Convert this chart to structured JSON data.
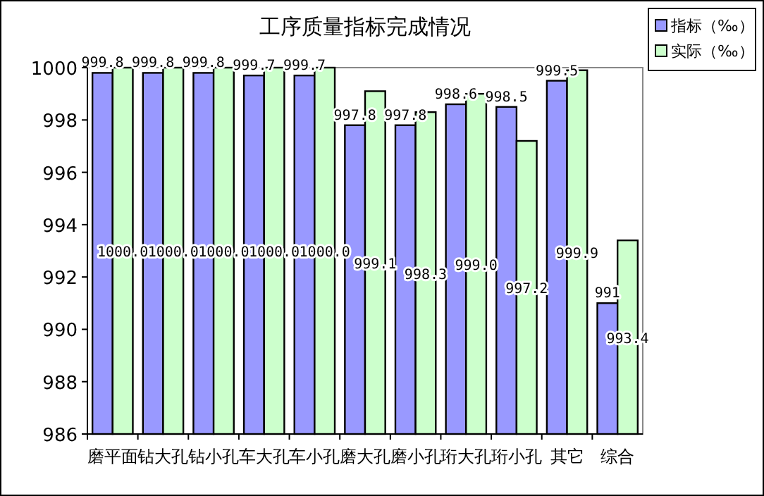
{
  "chart_data": {
    "type": "bar",
    "title": "工序质量指标完成情况",
    "categories": [
      "磨平面",
      "钻大孔",
      "钻小孔",
      "车大孔",
      "车小孔",
      "磨大孔",
      "磨小孔",
      "珩大孔",
      "珩小孔",
      "其它",
      "综合"
    ],
    "series": [
      {
        "name": "指标（‰）",
        "color": "#9999ff",
        "values": [
          999.8,
          999.8,
          999.8,
          999.7,
          999.7,
          997.8,
          997.8,
          998.6,
          998.5,
          999.5,
          991
        ],
        "value_labels": [
          "999.8",
          "999.8",
          "999.8",
          "999.7",
          "999.7",
          "997.8",
          "997.8",
          "998.6",
          "998.5",
          "999.5",
          "991"
        ]
      },
      {
        "name": "实际（‰）",
        "color": "#ccffcc",
        "values": [
          1000,
          1000,
          1000,
          1000,
          1000,
          999.1,
          998.3,
          999,
          997.2,
          999.9,
          993.4
        ],
        "value_labels": [
          "1000.0",
          "1000.0",
          "1000.0",
          "1000.0",
          "1000.0",
          "999.1",
          "998.3",
          "999.0",
          "997.2",
          "999.9",
          "993.4"
        ]
      }
    ],
    "ylim": [
      986,
      1000
    ],
    "yticks": [
      986,
      988,
      990,
      992,
      994,
      996,
      998,
      1000
    ],
    "grid": false,
    "legend": "top right"
  }
}
